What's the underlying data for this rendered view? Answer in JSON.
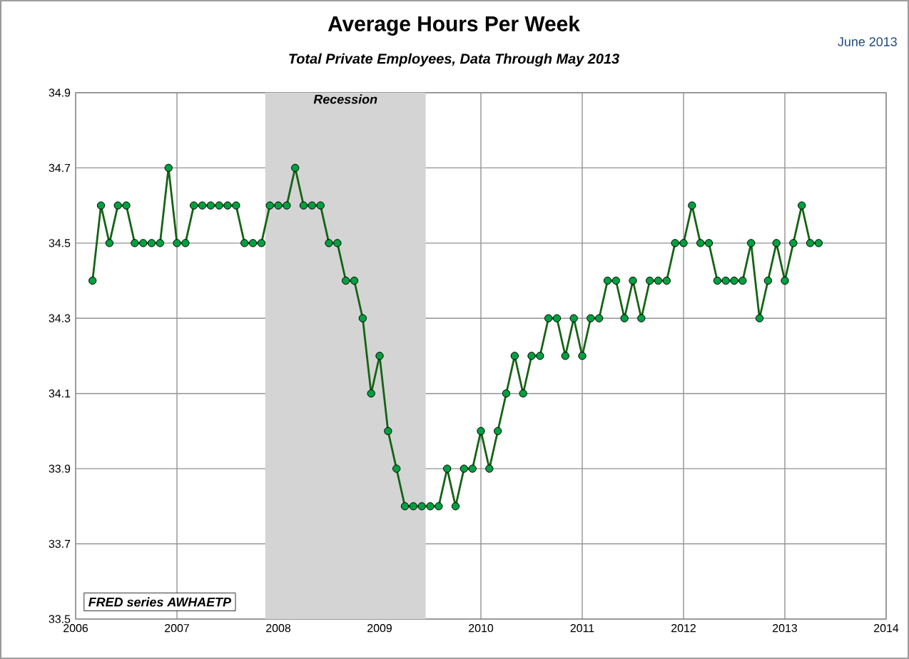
{
  "chart_data": {
    "type": "line",
    "title": "Average Hours Per Week",
    "subtitle": "Total Private Employees, Data Through May 2013",
    "x": [
      "2006-03",
      "2006-04",
      "2006-05",
      "2006-06",
      "2006-07",
      "2006-08",
      "2006-09",
      "2006-10",
      "2006-11",
      "2006-12",
      "2007-01",
      "2007-02",
      "2007-03",
      "2007-04",
      "2007-05",
      "2007-06",
      "2007-07",
      "2007-08",
      "2007-09",
      "2007-10",
      "2007-11",
      "2007-12",
      "2008-01",
      "2008-02",
      "2008-03",
      "2008-04",
      "2008-05",
      "2008-06",
      "2008-07",
      "2008-08",
      "2008-09",
      "2008-10",
      "2008-11",
      "2008-12",
      "2009-01",
      "2009-02",
      "2009-03",
      "2009-04",
      "2009-05",
      "2009-06",
      "2009-07",
      "2009-08",
      "2009-09",
      "2009-10",
      "2009-11",
      "2009-12",
      "2010-01",
      "2010-02",
      "2010-03",
      "2010-04",
      "2010-05",
      "2010-06",
      "2010-07",
      "2010-08",
      "2010-09",
      "2010-10",
      "2010-11",
      "2010-12",
      "2011-01",
      "2011-02",
      "2011-03",
      "2011-04",
      "2011-05",
      "2011-06",
      "2011-07",
      "2011-08",
      "2011-09",
      "2011-10",
      "2011-11",
      "2011-12",
      "2012-01",
      "2012-02",
      "2012-03",
      "2012-04",
      "2012-05",
      "2012-06",
      "2012-07",
      "2012-08",
      "2012-09",
      "2012-10",
      "2012-11",
      "2012-12",
      "2013-01",
      "2013-02",
      "2013-03",
      "2013-04",
      "2013-05"
    ],
    "series": [
      {
        "color": "#00a040",
        "values": [
          34.4,
          34.6,
          34.5,
          34.6,
          34.6,
          34.5,
          34.5,
          34.5,
          34.5,
          34.7,
          34.5,
          34.5,
          34.6,
          34.6,
          34.6,
          34.6,
          34.6,
          34.6,
          34.5,
          34.5,
          34.5,
          34.6,
          34.6,
          34.6,
          34.7,
          34.6,
          34.6,
          34.6,
          34.5,
          34.5,
          34.4,
          34.4,
          34.3,
          34.1,
          34.2,
          34.0,
          33.9,
          33.8,
          33.8,
          33.8,
          33.8,
          33.8,
          33.9,
          33.8,
          33.9,
          33.9,
          34.0,
          33.9,
          34.0,
          34.1,
          34.2,
          34.1,
          34.2,
          34.2,
          34.3,
          34.3,
          34.2,
          34.3,
          34.2,
          34.3,
          34.3,
          34.4,
          34.4,
          34.3,
          34.4,
          34.3,
          34.4,
          34.4,
          34.4,
          34.5,
          34.5,
          34.6,
          34.5,
          34.5,
          34.4,
          34.4,
          34.4,
          34.4,
          34.5,
          34.3,
          34.4,
          34.5,
          34.4,
          34.5,
          34.6,
          34.5,
          34.5
        ]
      }
    ],
    "xlim": [
      "2006",
      "2014"
    ],
    "xticks": [
      "2006",
      "2007",
      "2008",
      "2009",
      "2010",
      "2011",
      "2012",
      "2013",
      "2014"
    ],
    "ylim": [
      33.5,
      34.9
    ],
    "yticks": [
      33.5,
      33.7,
      33.9,
      34.1,
      34.3,
      34.5,
      34.7,
      34.9
    ],
    "bands": [
      {
        "axis": "x",
        "from": "2007-11-15",
        "to": "2009-06-15",
        "label": "Recession",
        "color": "#d4d4d4"
      }
    ],
    "annotations": [
      "June 2013",
      "FRED series AWHAETP"
    ],
    "grid": true,
    "marker": "circle",
    "line_style": "solid"
  }
}
